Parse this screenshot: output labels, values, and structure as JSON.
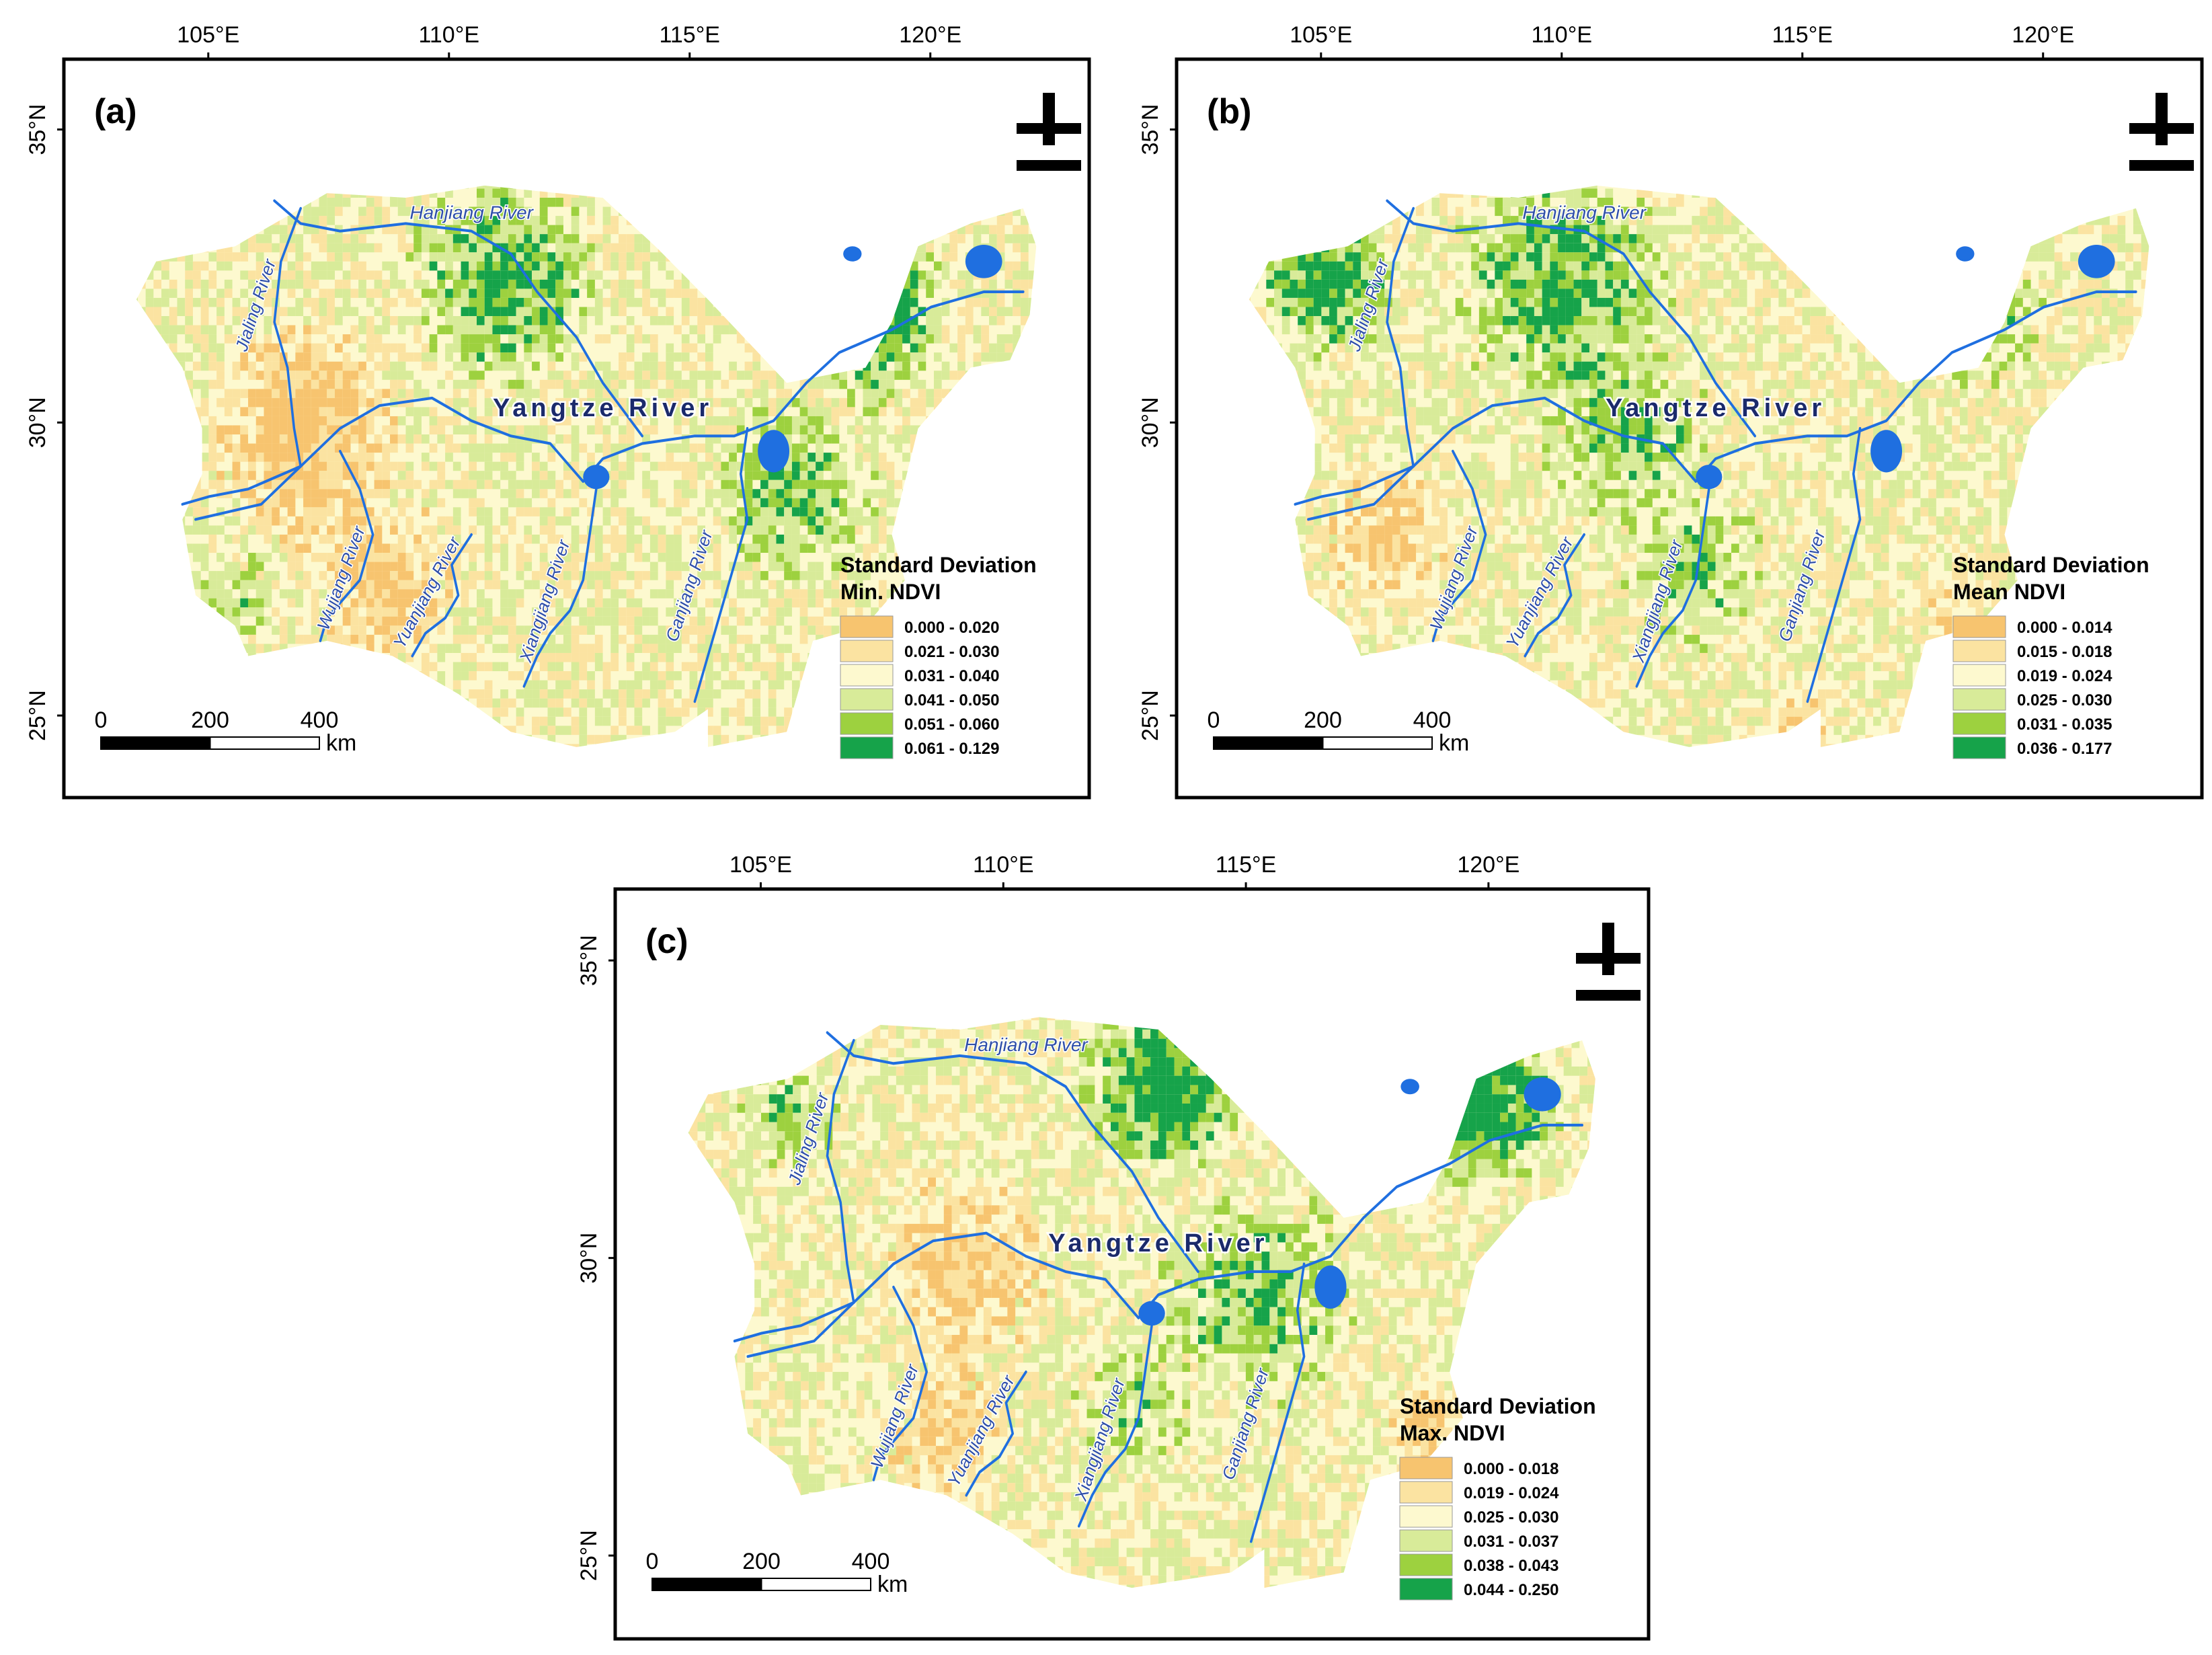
{
  "figure": {
    "panels": [
      {
        "id": "a",
        "label": "(a)",
        "lon_ticks": [
          "105°E",
          "110°E",
          "115°E",
          "120°E"
        ],
        "lat_ticks": [
          "35°N",
          "30°N",
          "25°N"
        ],
        "legend": {
          "title_line1": "Standard Deviation",
          "title_line2": "Min. NDVI",
          "classes": [
            {
              "range": "0.000 - 0.020",
              "color": "#f7c46f"
            },
            {
              "range": "0.021 - 0.030",
              "color": "#fbe3a1"
            },
            {
              "range": "0.031 - 0.040",
              "color": "#fdf9cf"
            },
            {
              "range": "0.041 - 0.050",
              "color": "#d8eb99"
            },
            {
              "range": "0.051 - 0.060",
              "color": "#9dd13f"
            },
            {
              "range": "0.061 - 0.129",
              "color": "#16a34a"
            }
          ]
        },
        "rivers": [
          "Hanjiang River",
          "Jialing River",
          "Yangtze River",
          "Wujiang River",
          "Yuanjiang River",
          "Xiangjiang River",
          "Ganjiang River"
        ]
      },
      {
        "id": "b",
        "label": "(b)",
        "lon_ticks": [
          "105°E",
          "110°E",
          "115°E",
          "120°E"
        ],
        "lat_ticks": [
          "35°N",
          "30°N",
          "25°N"
        ],
        "legend": {
          "title_line1": "Standard Deviation",
          "title_line2": "Mean NDVI",
          "classes": [
            {
              "range": "0.000 - 0.014",
              "color": "#f7c46f"
            },
            {
              "range": "0.015 - 0.018",
              "color": "#fbe3a1"
            },
            {
              "range": "0.019 - 0.024",
              "color": "#fdf9cf"
            },
            {
              "range": "0.025 - 0.030",
              "color": "#d8eb99"
            },
            {
              "range": "0.031 - 0.035",
              "color": "#9dd13f"
            },
            {
              "range": "0.036 - 0.177",
              "color": "#16a34a"
            }
          ]
        },
        "rivers": [
          "Hanjiang River",
          "Jialing River",
          "Yangtze River",
          "Wujiang River",
          "Yuanjiang River",
          "Xiangjiang River",
          "Ganjiang River"
        ]
      },
      {
        "id": "c",
        "label": "(c)",
        "lon_ticks": [
          "105°E",
          "110°E",
          "115°E",
          "120°E"
        ],
        "lat_ticks": [
          "35°N",
          "30°N",
          "25°N"
        ],
        "legend": {
          "title_line1": "Standard Deviation",
          "title_line2": "Max. NDVI",
          "classes": [
            {
              "range": "0.000 - 0.018",
              "color": "#f7c46f"
            },
            {
              "range": "0.019 - 0.024",
              "color": "#fbe3a1"
            },
            {
              "range": "0.025 - 0.030",
              "color": "#fdf9cf"
            },
            {
              "range": "0.031 - 0.037",
              "color": "#d8eb99"
            },
            {
              "range": "0.038 - 0.043",
              "color": "#9dd13f"
            },
            {
              "range": "0.044 - 0.250",
              "color": "#16a34a"
            }
          ]
        },
        "rivers": [
          "Hanjiang River",
          "Jialing River",
          "Yangtze River",
          "Wujiang River",
          "Yuanjiang River",
          "Xiangjiang River",
          "Ganjiang River"
        ]
      }
    ],
    "scale_bar": {
      "labels": [
        "0",
        "200",
        "400"
      ],
      "unit": "km"
    },
    "north_arrow": "north-arrow-icon",
    "colors": {
      "river": "#1f6fe0",
      "frame": "#000000",
      "yangtze_label": "#1b2a6b",
      "river_label": "#2f4fa8"
    }
  }
}
